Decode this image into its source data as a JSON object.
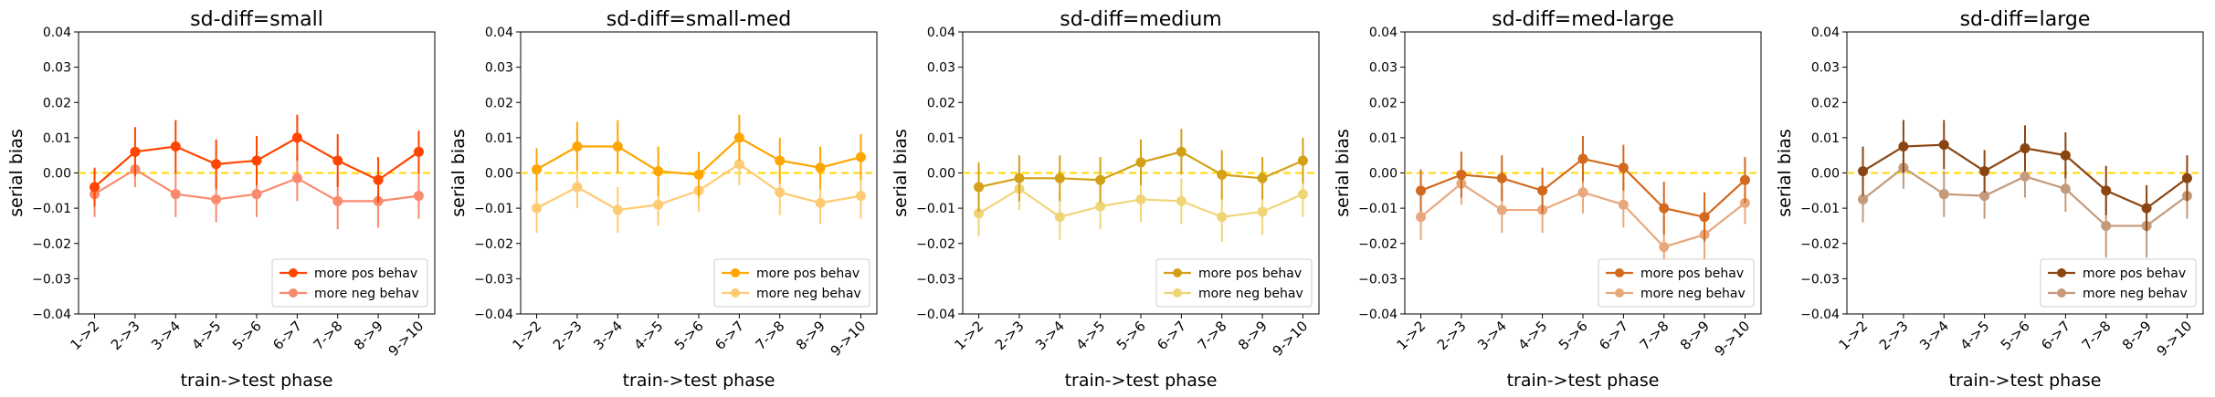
{
  "figure": {
    "ylabel": "serial bias",
    "xlabel": "train->test phase"
  },
  "chart_data": [
    {
      "type": "line",
      "title": "sd-diff=small",
      "xlabel": "train->test phase",
      "ylabel": "serial bias",
      "categories": [
        "1->2",
        "2->3",
        "3->4",
        "4->5",
        "5->6",
        "6->7",
        "7->8",
        "8->9",
        "9->10"
      ],
      "ylim": [
        -0.04,
        0.04
      ],
      "yticks": [
        "−0.04",
        "−0.03",
        "−0.02",
        "−0.01",
        "0.00",
        "0.01",
        "0.02",
        "0.03",
        "0.04"
      ],
      "reference_line": 0,
      "legend_position": "lower-right",
      "series": [
        {
          "name": "more pos behav",
          "color": "#ff4500",
          "values": [
            -0.004,
            0.006,
            0.0075,
            0.0025,
            0.0035,
            0.01,
            0.0035,
            -0.002,
            0.006
          ],
          "errors": [
            0.0055,
            0.007,
            0.0075,
            0.007,
            0.007,
            0.0065,
            0.0075,
            0.0065,
            0.006
          ]
        },
        {
          "name": "more neg behav",
          "color": "#fa8a6e",
          "values": [
            -0.006,
            0.001,
            -0.006,
            -0.0075,
            -0.006,
            -0.0015,
            -0.008,
            -0.008,
            -0.0065
          ],
          "errors": [
            0.0065,
            0.005,
            0.0065,
            0.0065,
            0.0065,
            0.0065,
            0.008,
            0.0075,
            0.0065
          ]
        }
      ]
    },
    {
      "type": "line",
      "title": "sd-diff=small-med",
      "xlabel": "train->test phase",
      "ylabel": "serial bias",
      "categories": [
        "1->2",
        "2->3",
        "3->4",
        "4->5",
        "5->6",
        "6->7",
        "7->8",
        "8->9",
        "9->10"
      ],
      "ylim": [
        -0.04,
        0.04
      ],
      "yticks": [
        "−0.04",
        "−0.03",
        "−0.02",
        "−0.01",
        "0.00",
        "0.01",
        "0.02",
        "0.03",
        "0.04"
      ],
      "reference_line": 0,
      "legend_position": "lower-right",
      "series": [
        {
          "name": "more pos behav",
          "color": "#ffa500",
          "values": [
            0.001,
            0.0075,
            0.0075,
            0.0005,
            -0.0005,
            0.01,
            0.0035,
            0.0015,
            0.0045
          ],
          "errors": [
            0.006,
            0.007,
            0.0075,
            0.007,
            0.0065,
            0.0065,
            0.0065,
            0.006,
            0.0065
          ]
        },
        {
          "name": "more neg behav",
          "color": "#ffcb72",
          "values": [
            -0.01,
            -0.004,
            -0.0105,
            -0.009,
            -0.005,
            0.0025,
            -0.0055,
            -0.0085,
            -0.0065
          ],
          "errors": [
            0.007,
            0.006,
            0.0065,
            0.006,
            0.006,
            0.006,
            0.0065,
            0.006,
            0.0065
          ]
        }
      ]
    },
    {
      "type": "line",
      "title": "sd-diff=medium",
      "xlabel": "train->test phase",
      "ylabel": "serial bias",
      "categories": [
        "1->2",
        "2->3",
        "3->4",
        "4->5",
        "5->6",
        "6->7",
        "7->8",
        "8->9",
        "9->10"
      ],
      "ylim": [
        -0.04,
        0.04
      ],
      "yticks": [
        "−0.04",
        "−0.03",
        "−0.02",
        "−0.01",
        "0.00",
        "0.01",
        "0.02",
        "0.03",
        "0.04"
      ],
      "reference_line": 0,
      "legend_position": "lower-right",
      "series": [
        {
          "name": "more pos behav",
          "color": "#d4a017",
          "values": [
            -0.004,
            -0.0015,
            -0.0015,
            -0.002,
            0.003,
            0.006,
            -0.0005,
            -0.0015,
            0.0035
          ],
          "errors": [
            0.007,
            0.0065,
            0.0065,
            0.0065,
            0.0065,
            0.0065,
            0.007,
            0.006,
            0.0065
          ]
        },
        {
          "name": "more neg behav",
          "color": "#f0d577",
          "values": [
            -0.0115,
            -0.0045,
            -0.0125,
            -0.0095,
            -0.0075,
            -0.008,
            -0.0125,
            -0.011,
            -0.006
          ],
          "errors": [
            0.0065,
            0.006,
            0.0065,
            0.0065,
            0.0065,
            0.0065,
            0.007,
            0.0065,
            0.0065
          ]
        }
      ]
    },
    {
      "type": "line",
      "title": "sd-diff=med-large",
      "xlabel": "train->test phase",
      "ylabel": "serial bias",
      "categories": [
        "1->2",
        "2->3",
        "3->4",
        "4->5",
        "5->6",
        "6->7",
        "7->8",
        "8->9",
        "9->10"
      ],
      "ylim": [
        -0.04,
        0.04
      ],
      "yticks": [
        "−0.04",
        "−0.03",
        "−0.02",
        "−0.01",
        "0.00",
        "0.01",
        "0.02",
        "0.03",
        "0.04"
      ],
      "reference_line": 0,
      "legend_position": "lower-right",
      "series": [
        {
          "name": "more pos behav",
          "color": "#d2691e",
          "values": [
            -0.005,
            -0.0005,
            -0.0015,
            -0.005,
            0.004,
            0.0015,
            -0.01,
            -0.0125,
            -0.002
          ],
          "errors": [
            0.006,
            0.0065,
            0.0065,
            0.0065,
            0.0065,
            0.0065,
            0.0075,
            0.007,
            0.0065
          ]
        },
        {
          "name": "more neg behav",
          "color": "#e8a87c",
          "values": [
            -0.0125,
            -0.003,
            -0.0105,
            -0.0105,
            -0.0055,
            -0.009,
            -0.021,
            -0.0175,
            -0.0085
          ],
          "errors": [
            0.0065,
            0.006,
            0.0065,
            0.0065,
            0.006,
            0.0065,
            0.008,
            0.0075,
            0.006
          ]
        }
      ]
    },
    {
      "type": "line",
      "title": "sd-diff=large",
      "xlabel": "train->test phase",
      "ylabel": "serial bias",
      "categories": [
        "1->2",
        "2->3",
        "3->4",
        "4->5",
        "5->6",
        "6->7",
        "7->8",
        "8->9",
        "9->10"
      ],
      "ylim": [
        -0.04,
        0.04
      ],
      "yticks": [
        "−0.04",
        "−0.03",
        "−0.02",
        "−0.01",
        "0.00",
        "0.01",
        "0.02",
        "0.03",
        "0.04"
      ],
      "reference_line": 0,
      "legend_position": "lower-right",
      "series": [
        {
          "name": "more pos behav",
          "color": "#8b4513",
          "values": [
            0.0005,
            0.0075,
            0.008,
            0.0005,
            0.007,
            0.005,
            -0.005,
            -0.01,
            -0.0015
          ],
          "errors": [
            0.007,
            0.0075,
            0.007,
            0.006,
            0.0065,
            0.0065,
            0.007,
            0.0065,
            0.0065
          ]
        },
        {
          "name": "more neg behav",
          "color": "#c49a7a",
          "values": [
            -0.0075,
            0.0015,
            -0.006,
            -0.0065,
            -0.001,
            -0.0045,
            -0.015,
            -0.015,
            -0.0065
          ],
          "errors": [
            0.0065,
            0.006,
            0.0065,
            0.0065,
            0.006,
            0.0065,
            0.009,
            0.009,
            0.0065
          ]
        }
      ]
    }
  ]
}
